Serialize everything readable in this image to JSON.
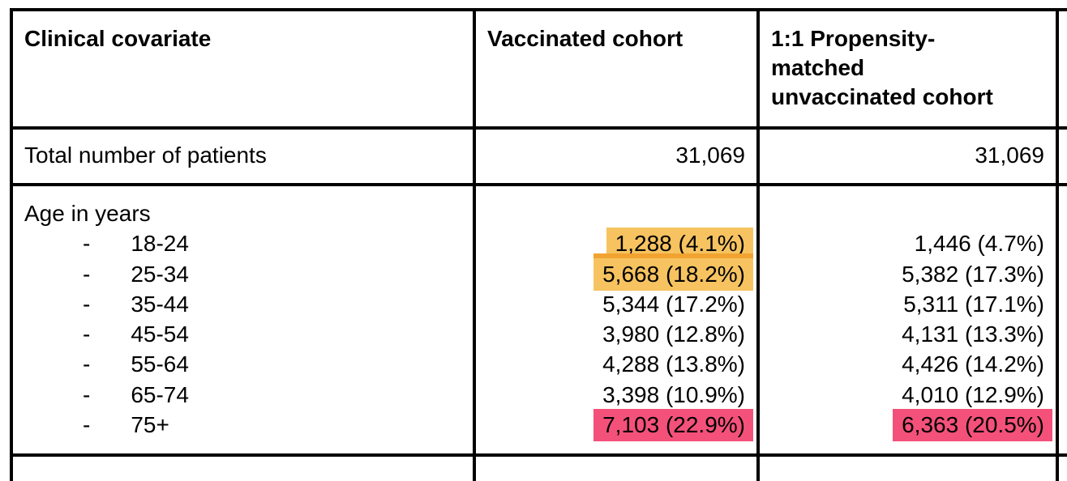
{
  "table": {
    "columns": [
      {
        "label": "Clinical covariate"
      },
      {
        "label": "Vaccinated cohort"
      },
      {
        "label": "1:1 Propensity-\nmatched\nunvaccinated cohort"
      }
    ],
    "total_row": {
      "label": "Total number of patients",
      "vaccinated": "31,069",
      "unvaccinated": "31,069"
    },
    "age_section": {
      "label": "Age in years",
      "bullet": "-",
      "rows": [
        {
          "range": "18-24",
          "vaccinated": "1,288 (4.1%)",
          "unvaccinated": "1,446 (4.7%)"
        },
        {
          "range": "25-34",
          "vaccinated": "5,668 (18.2%)",
          "unvaccinated": "5,382 (17.3%)"
        },
        {
          "range": "35-44",
          "vaccinated": "5,344 (17.2%)",
          "unvaccinated": "5,311 (17.1%)"
        },
        {
          "range": "45-54",
          "vaccinated": "3,980 (12.8%)",
          "unvaccinated": "4,131 (13.3%)"
        },
        {
          "range": "55-64",
          "vaccinated": "4,288 (13.8%)",
          "unvaccinated": "4,426 (14.2%)"
        },
        {
          "range": "65-74",
          "vaccinated": "3,398 (10.9%)",
          "unvaccinated": "4,010 (12.9%)"
        },
        {
          "range": "75+",
          "vaccinated": "7,103 (22.9%)",
          "unvaccinated": "6,363 (20.5%)"
        }
      ]
    },
    "highlights": {
      "orange": "#F6C360",
      "orange_overlap": "#F0A331",
      "pink": "#F4517A",
      "border_color": "#000000"
    }
  }
}
